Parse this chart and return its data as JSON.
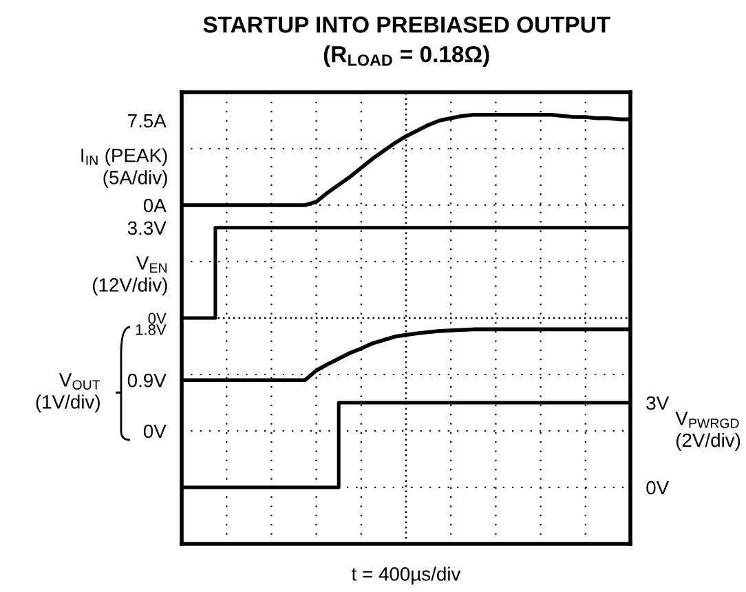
{
  "chart_data": [
    {
      "type": "line",
      "title": "STARTUP INTO PREBIASED OUTPUT",
      "subtitle": "(R$_{LOAD}$ = 0.18Ω)",
      "xlabel": "t = 400µs/div",
      "ylabel": "I$_{IN}$ (PEAK)\n(5A/div)",
      "grid": true,
      "tick_labels": "y",
      "categories": [
        null,
        null,
        null,
        null,
        null,
        null,
        null,
        null,
        null,
        null,
        null,
        null,
        null,
        null,
        null,
        null,
        null,
        null,
        null,
        null,
        null,
        null,
        null,
        null,
        null,
        null,
        null,
        null,
        null,
        null,
        null,
        null,
        null,
        null,
        null,
        null,
        null,
        null,
        null,
        null,
        null
      ],
      "ylim": [
        -30,
        10
      ],
      "yticks": [
        {
          "value": 0,
          "label": "0A"
        },
        {
          "value": 7.5,
          "label": "7.5A"
        }
      ],
      "series": [
        {
          "color": "#000000",
          "values": [
            0,
            0,
            0,
            0,
            0,
            0,
            0,
            0,
            0,
            0,
            0,
            0,
            0.3,
            1.1,
            1.8,
            2.5,
            3.3,
            4.1,
            4.8,
            5.5,
            6.1,
            6.6,
            7.1,
            7.5,
            7.7,
            7.9,
            8.0,
            8.0,
            8.0,
            8.0,
            8.0,
            8.0,
            8.0,
            8.0,
            7.9,
            7.8,
            7.8,
            7.7,
            7.7,
            7.6,
            7.6
          ]
        }
      ]
    },
    {
      "type": "step",
      "ylabel": "V$_{EN}$\n(12V/div)",
      "tick_labels": "y",
      "categories": [
        null,
        null,
        null,
        null,
        null,
        null,
        null,
        null,
        null,
        null,
        null,
        null,
        null,
        null,
        null,
        null,
        null,
        null,
        null,
        null,
        null,
        null,
        null,
        null,
        null,
        null,
        null,
        null,
        null,
        null,
        null,
        null,
        null,
        null,
        null,
        null,
        null,
        null,
        null,
        null,
        null
      ],
      "ylim": [
        -8.25,
        8.25
      ],
      "yticks": [
        {
          "value": 0,
          "label": "0V"
        },
        {
          "value": 3.3,
          "label": "3.3V"
        }
      ],
      "series": [
        {
          "color": "#000000",
          "values": [
            0,
            0,
            0,
            3.3,
            3.3,
            3.3,
            3.3,
            3.3,
            3.3,
            3.3,
            3.3,
            3.3,
            3.3,
            3.3,
            3.3,
            3.3,
            3.3,
            3.3,
            3.3,
            3.3,
            3.3,
            3.3,
            3.3,
            3.3,
            3.3,
            3.3,
            3.3,
            3.3,
            3.3,
            3.3,
            3.3,
            3.3,
            3.3,
            3.3,
            3.3,
            3.3,
            3.3,
            3.3,
            3.3,
            3.3,
            3.3
          ]
        }
      ]
    },
    {
      "type": "line",
      "ylabel": "V$_{OUT}$\n(1V/div)",
      "tick_labels": "y",
      "categories": [
        null,
        null,
        null,
        null,
        null,
        null,
        null,
        null,
        null,
        null,
        null,
        null,
        null,
        null,
        null,
        null,
        null,
        null,
        null,
        null,
        null,
        null,
        null,
        null,
        null,
        null,
        null,
        null,
        null,
        null,
        null,
        null,
        null,
        null,
        null,
        null,
        null,
        null,
        null,
        null,
        null
      ],
      "ylim": [
        -2,
        6
      ],
      "yticks": [
        {
          "value": 0,
          "label": "0V"
        },
        {
          "value": 0.9,
          "label": "0.9V"
        },
        {
          "value": 1.8,
          "label": "1.8V"
        }
      ],
      "series": [
        {
          "color": "#000000",
          "values": [
            0.9,
            0.9,
            0.9,
            0.9,
            0.9,
            0.9,
            0.9,
            0.9,
            0.9,
            0.9,
            0.9,
            0.9,
            1.07,
            1.18,
            1.28,
            1.38,
            1.46,
            1.55,
            1.61,
            1.67,
            1.7,
            1.73,
            1.75,
            1.77,
            1.78,
            1.79,
            1.8,
            1.8,
            1.8,
            1.8,
            1.8,
            1.8,
            1.8,
            1.8,
            1.8,
            1.8,
            1.8,
            1.8,
            1.8,
            1.8,
            1.8
          ]
        }
      ]
    },
    {
      "type": "step",
      "ylabel": "V$_{PWRGD}$\n(2V/div)",
      "tick_labels": "y",
      "categories": [
        null,
        null,
        null,
        null,
        null,
        null,
        null,
        null,
        null,
        null,
        null,
        null,
        null,
        null,
        null,
        null,
        null,
        null,
        null,
        null,
        null,
        null,
        null,
        null,
        null,
        null,
        null,
        null,
        null,
        null,
        null,
        null,
        null,
        null,
        null,
        null,
        null,
        null,
        null,
        null,
        null
      ],
      "ylim": [
        -2,
        14
      ],
      "yticks": [
        {
          "value": 0,
          "label": "0V"
        },
        {
          "value": 3,
          "label": "3V"
        }
      ],
      "series": [
        {
          "color": "#000000",
          "values": [
            0,
            0,
            0,
            0,
            0,
            0,
            0,
            0,
            0,
            0,
            0,
            0,
            0,
            0,
            3,
            3,
            3,
            3,
            3,
            3,
            3,
            3,
            3,
            3,
            3,
            3,
            3,
            3,
            3,
            3,
            3,
            3,
            3,
            3,
            3,
            3,
            3,
            3,
            3,
            3,
            3
          ]
        }
      ]
    }
  ]
}
